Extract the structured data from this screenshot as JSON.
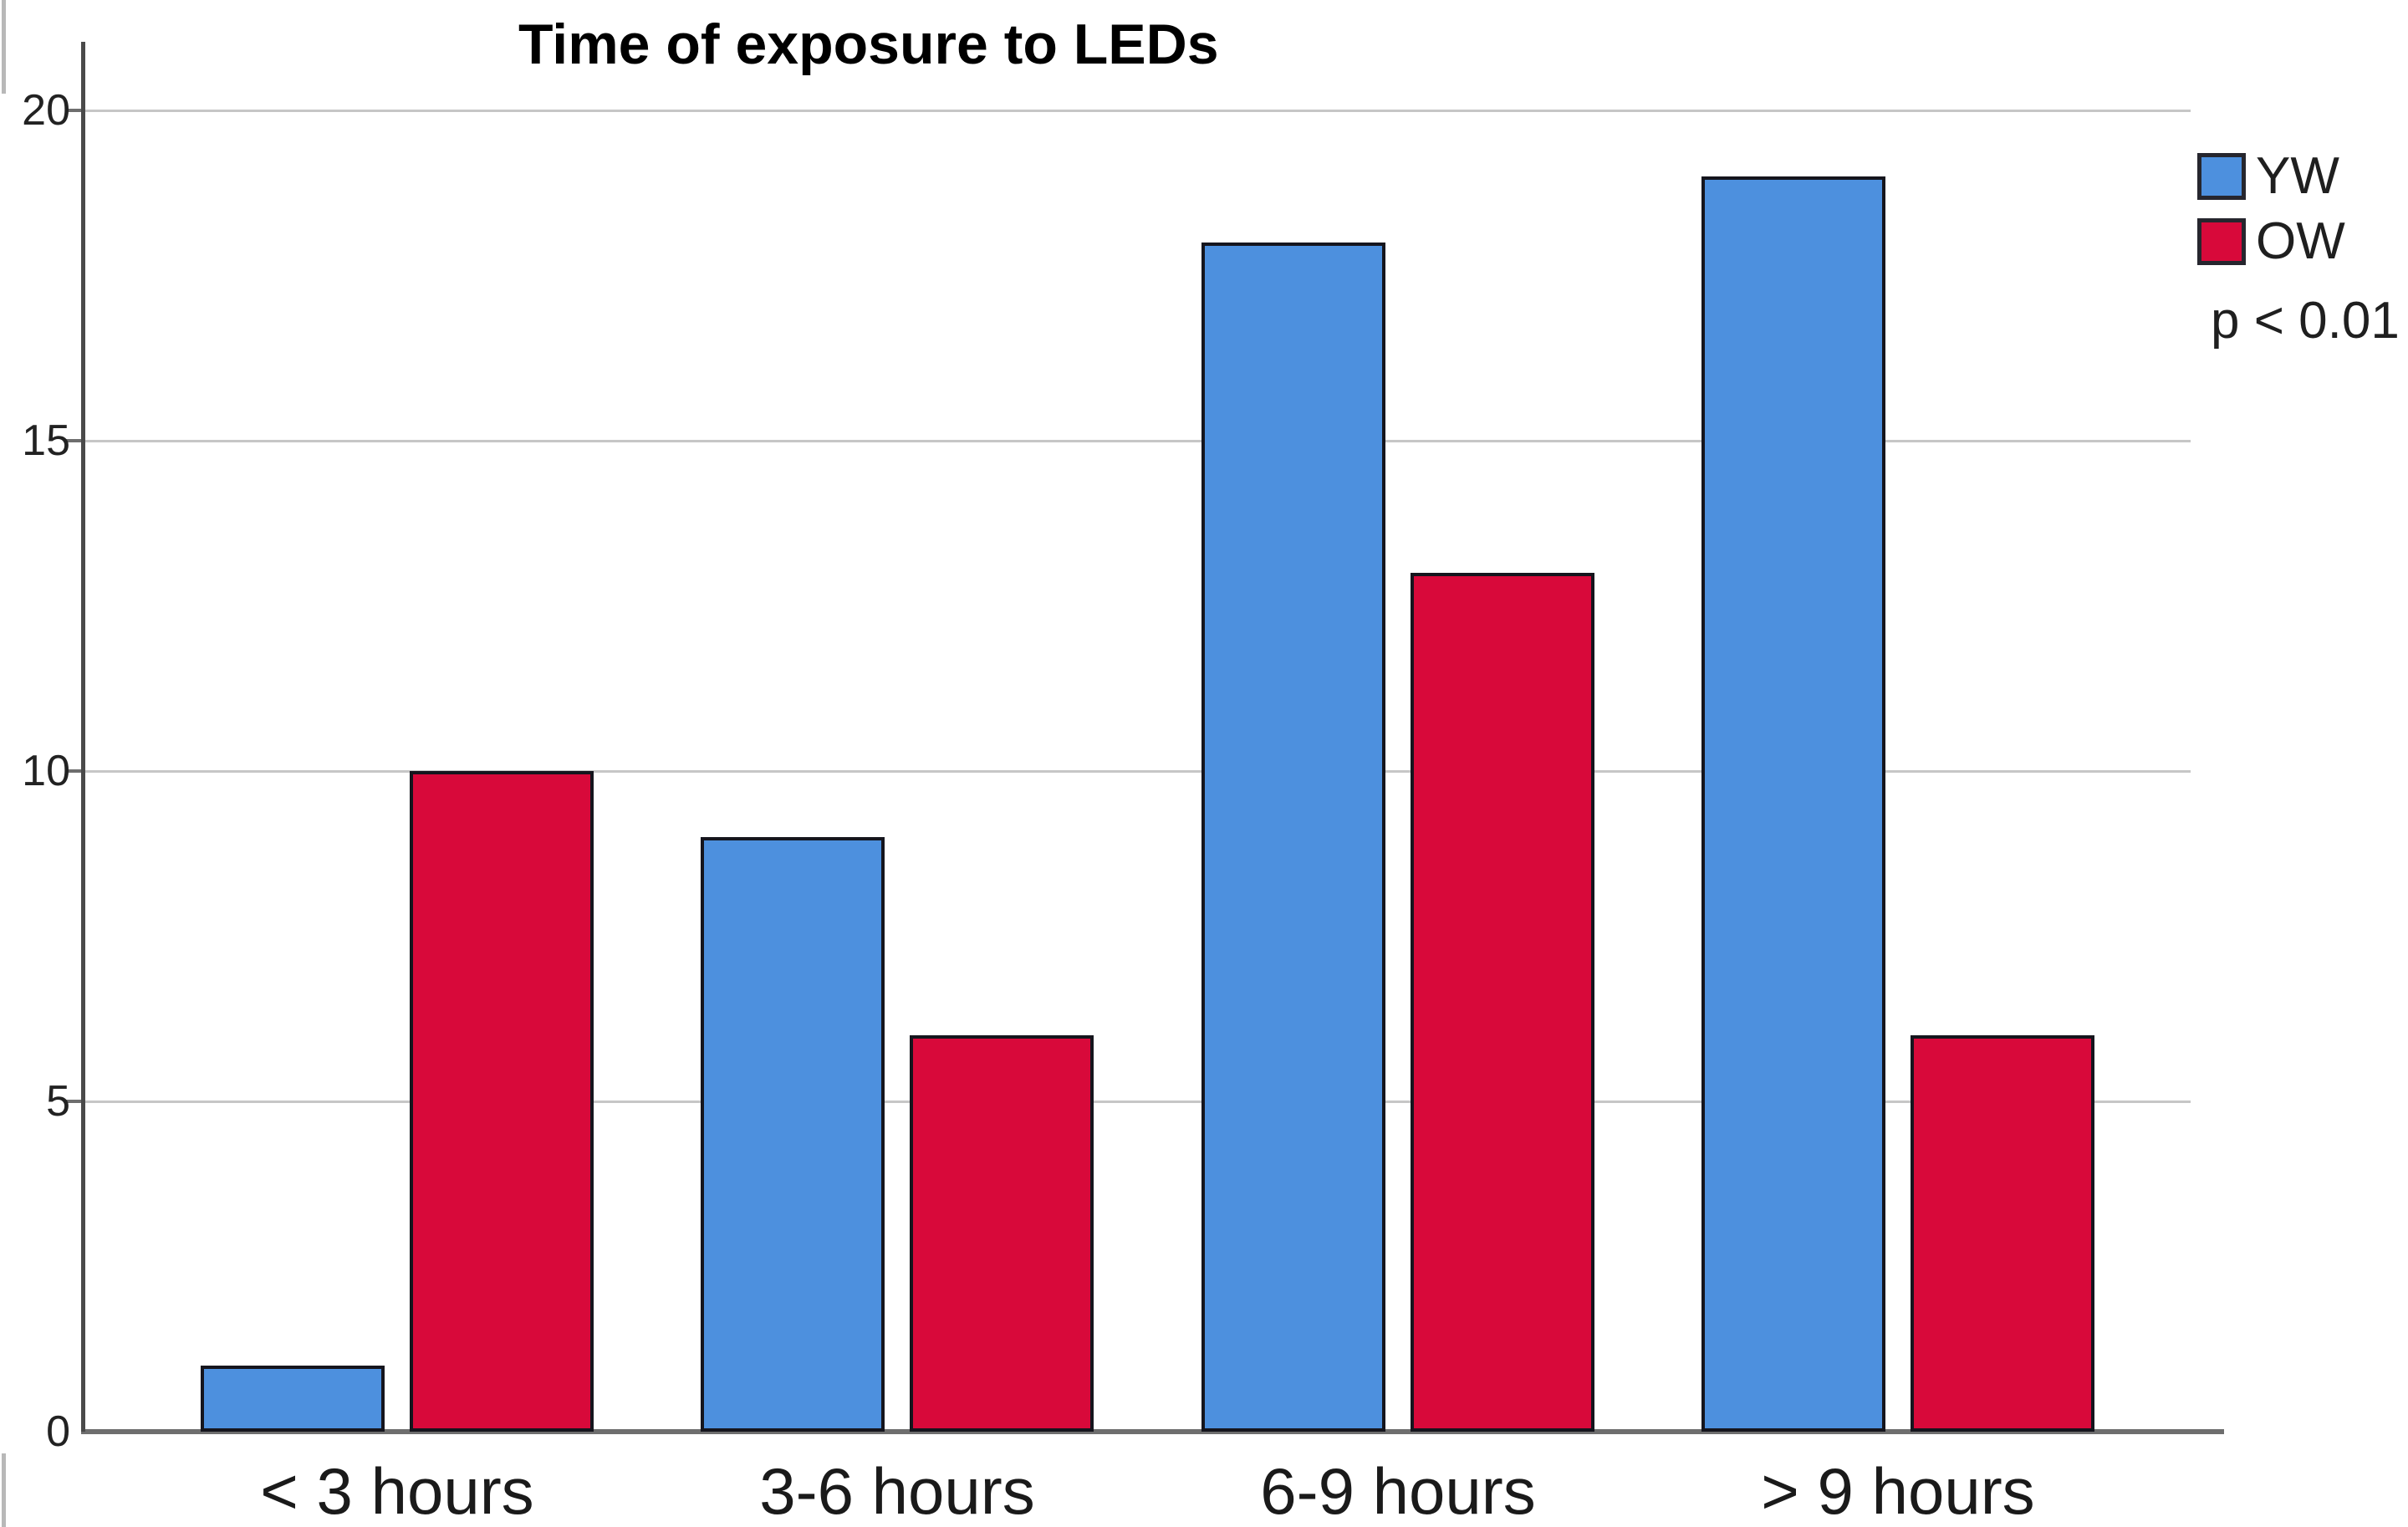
{
  "chart_data": {
    "type": "bar",
    "title": "Time of exposure to LEDs",
    "categories": [
      "< 3 hours",
      "3-6 hours",
      "6-9 hours",
      "> 9 hours"
    ],
    "series": [
      {
        "name": "YW",
        "color": "#4D90DE",
        "values": [
          1,
          9,
          18,
          19
        ]
      },
      {
        "name": "OW",
        "color": "#D8093A",
        "values": [
          10,
          6,
          13,
          6
        ]
      }
    ],
    "annotation": "p < 0.01",
    "xlabel": "",
    "ylabel": "",
    "y_ticks": [
      0,
      5,
      10,
      15,
      20
    ],
    "ylim": [
      0,
      20
    ],
    "grid": "horizontal",
    "legend_position": "top-right",
    "colors": {
      "bar_border": "#15151D",
      "gridline": "#C6C6C6",
      "baseline": "#6E6E6E",
      "y_axis": "#4A4A4A",
      "tick_label": "#222222",
      "category_label": "#1A1A1A",
      "title": "#000000"
    }
  }
}
